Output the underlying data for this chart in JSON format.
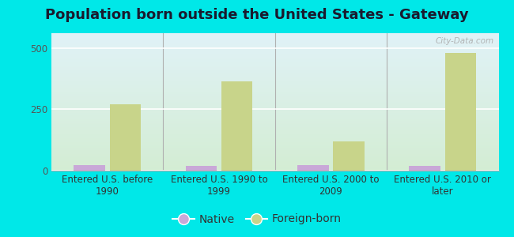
{
  "title": "Population born outside the United States - Gateway",
  "categories": [
    "Entered U.S. before\n1990",
    "Entered U.S. 1990 to\n1999",
    "Entered U.S. 2000 to\n2009",
    "Entered U.S. 2010 or\nlater"
  ],
  "native_values": [
    22,
    18,
    22,
    20
  ],
  "foreign_values": [
    270,
    365,
    120,
    480
  ],
  "native_color": "#c9a8d8",
  "foreign_color": "#c8d48a",
  "background_color": "#00e8e8",
  "ylim": [
    0,
    560
  ],
  "yticks": [
    0,
    250,
    500
  ],
  "bar_width": 0.28,
  "title_fontsize": 13,
  "tick_fontsize": 8.5,
  "legend_fontsize": 10,
  "watermark": "City-Data.com",
  "grid_color": "#ffffff",
  "separator_color": "#b0b0b0",
  "chart_bg_colors": [
    "#e8f0e8",
    "#f5f8f0",
    "#eaf4f0",
    "#dceee8"
  ],
  "grad_top": "#ddeef8",
  "grad_bottom": "#d8eed8"
}
